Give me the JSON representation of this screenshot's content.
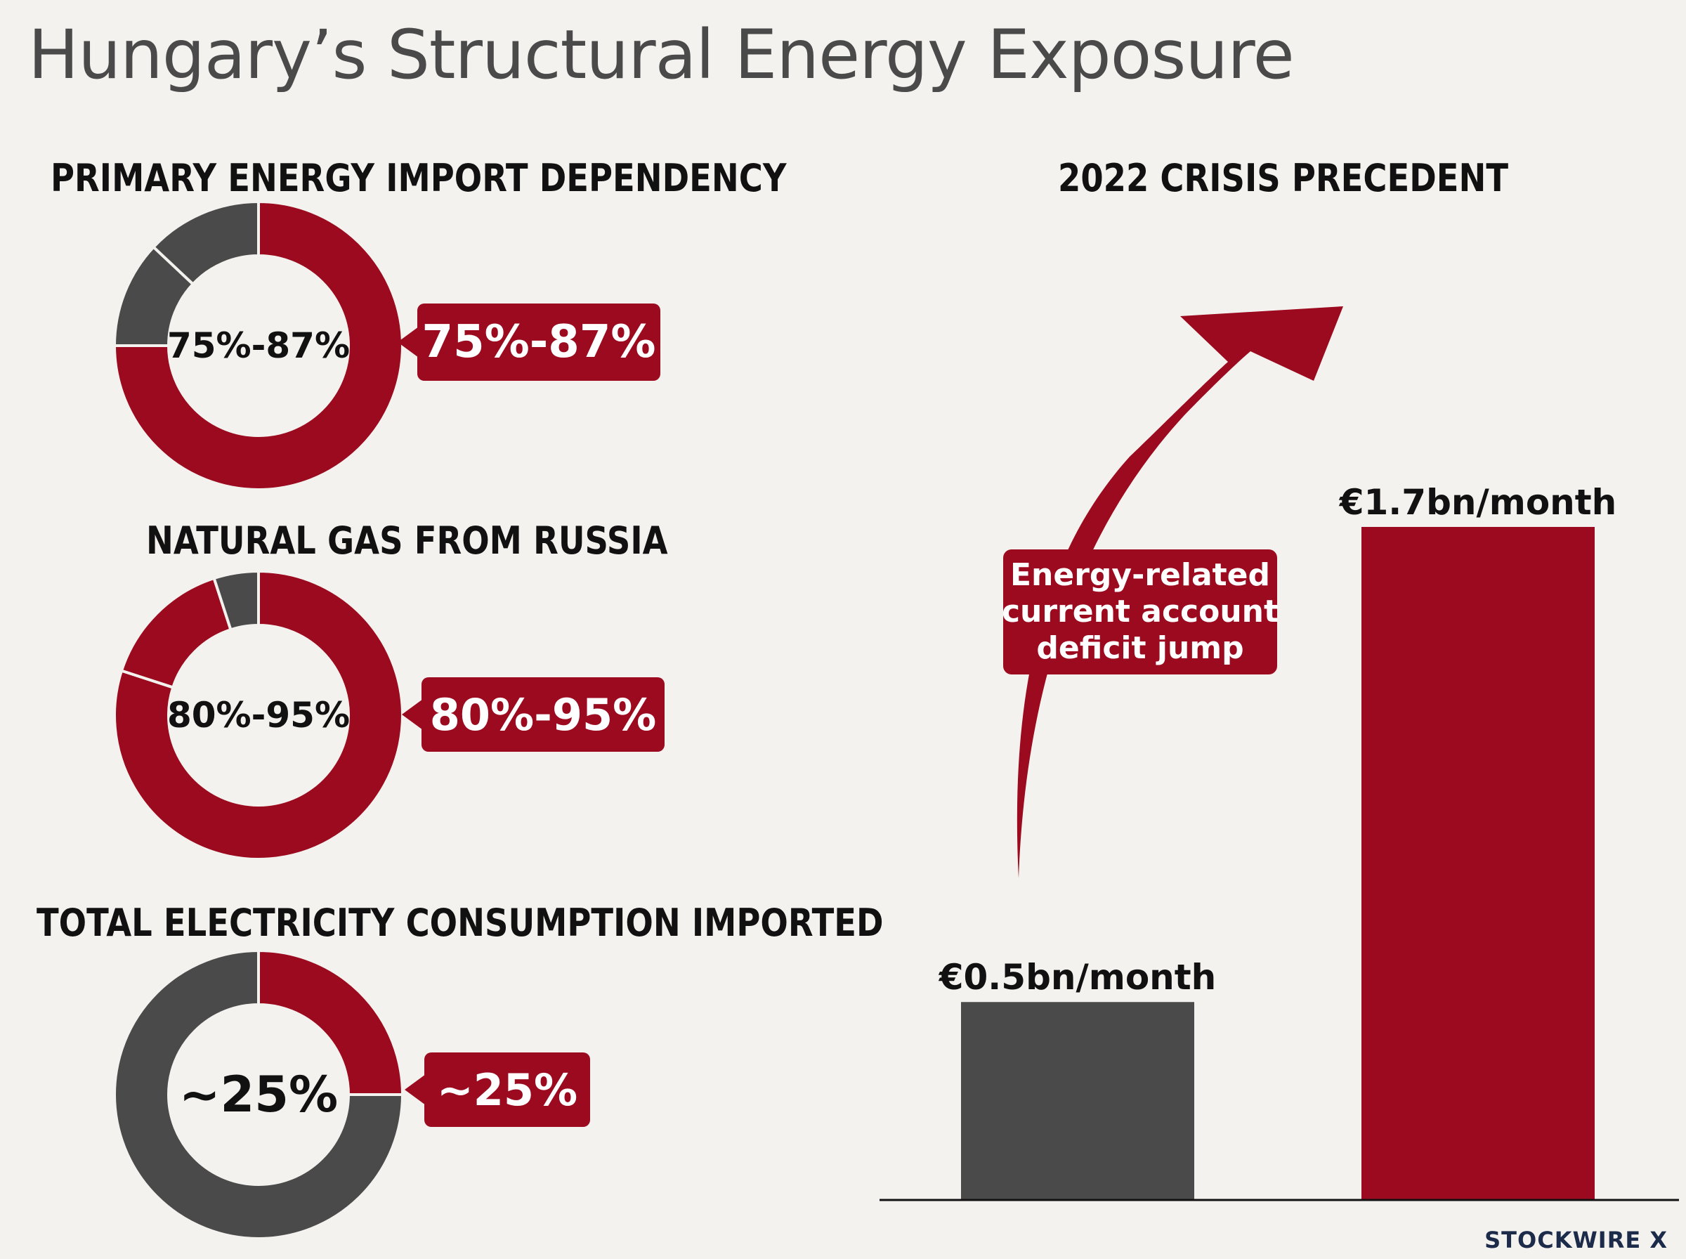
{
  "title": "Hungary’s Structural Energy Exposure",
  "colors": {
    "accent": "#9b0a1e",
    "neutral": "#4a4a4a",
    "background": "#f4f2ee"
  },
  "left_panel": {
    "donuts": [
      {
        "heading": "PRIMARY ENERGY IMPORT DEPENDENCY",
        "center_label": "75%-87%",
        "callout": "75%-87%"
      },
      {
        "heading": "NATURAL GAS FROM RUSSIA",
        "center_label": "80%-95%",
        "callout": "80%-95%"
      },
      {
        "heading": "TOTAL ELECTRICITY CONSUMPTION IMPORTED",
        "center_label": "~25%",
        "callout": "~25%"
      }
    ]
  },
  "right_panel": {
    "heading": "2022 CRISIS PRECEDENT",
    "arrow_label": [
      "Energy-related",
      "current account",
      "deficit jump"
    ],
    "bar_labels": [
      "€0.5bn/month",
      "€1.7bn/month"
    ]
  },
  "chart_data": [
    {
      "type": "pie",
      "title": "PRIMARY ENERGY IMPORT DEPENDENCY",
      "slices": [
        {
          "label": "imported",
          "value": 0.75,
          "color": "#9b0a1e"
        },
        {
          "label": "",
          "value": 0.12,
          "color": "#4a4a4a"
        },
        {
          "label": "",
          "value": 0.13,
          "color": "#4a4a4a"
        }
      ]
    },
    {
      "type": "pie",
      "title": "NATURAL GAS FROM RUSSIA",
      "slices": [
        {
          "label": "from Russia",
          "value": 0.8,
          "color": "#9b0a1e"
        },
        {
          "label": "",
          "value": 0.15,
          "color": "#9b0a1e"
        },
        {
          "label": "",
          "value": 0.05,
          "color": "#4a4a4a"
        }
      ]
    },
    {
      "type": "pie",
      "title": "TOTAL ELECTRICITY CONSUMPTION IMPORTED",
      "slices": [
        {
          "label": "imported",
          "value": 0.25,
          "color": "#9b0a1e"
        },
        {
          "label": "",
          "value": 0.75,
          "color": "#4a4a4a"
        }
      ]
    },
    {
      "type": "bar",
      "title": "2022 CRISIS PRECEDENT",
      "categories": [
        "",
        ""
      ],
      "values": [
        0.5,
        1.7
      ],
      "colors": [
        "#4a4a4a",
        "#9b0a1e"
      ],
      "ylim": [
        0,
        1.8
      ]
    }
  ],
  "watermark": "STOCKWIRE X"
}
